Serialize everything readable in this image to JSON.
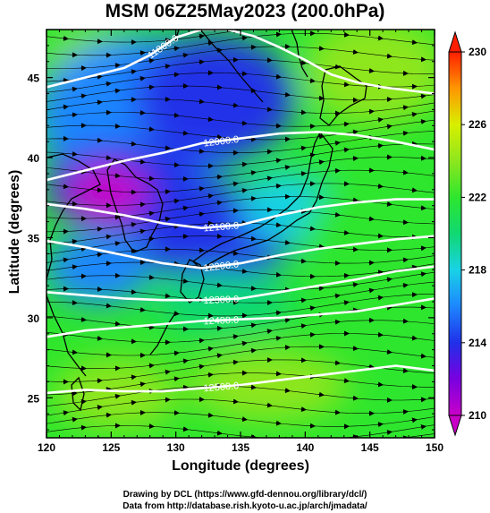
{
  "title": "MSM 06Z25May2023 (200.0hPa)",
  "xlabel": "Longitude (degrees)",
  "ylabel": "Latitude  (degrees)",
  "x_ticks": [
    "120",
    "125",
    "130",
    "135",
    "140",
    "145",
    "150"
  ],
  "y_ticks": [
    "25",
    "30",
    "35",
    "40",
    "45"
  ],
  "colorbar_ticks": [
    "210",
    "214",
    "218",
    "222",
    "226",
    "230"
  ],
  "contour_labels": [
    "11800.0",
    "12000.0",
    "12100.0",
    "12200.0",
    "12300.0",
    "12400.0",
    "12500.0"
  ],
  "credit_line1": "Drawing by DCL (https://www.gfd-dennou.org/library/dcl/)",
  "credit_line2": "Data from http://database.rish.kyoto-u.ac.jp/arch/jmadata/",
  "map_data": {
    "lon_range": [
      120,
      150
    ],
    "lat_range": [
      22.5,
      48
    ],
    "colorbar_range": [
      210,
      230
    ],
    "contours": [
      {
        "label": "11800.0",
        "points": [
          [
            120,
            44.4
          ],
          [
            123,
            45.0
          ],
          [
            126,
            45.6
          ],
          [
            128,
            46.4
          ],
          [
            130,
            47.5
          ],
          [
            132,
            48.0
          ],
          [
            134,
            48.0
          ],
          [
            136,
            47.6
          ],
          [
            138,
            46.9
          ],
          [
            140,
            46.1
          ],
          [
            142,
            45.2
          ],
          [
            144,
            44.7
          ],
          [
            146,
            44.4
          ],
          [
            148,
            44.2
          ],
          [
            150,
            44.0
          ]
        ]
      },
      {
        "label": "12000.0",
        "points": [
          [
            120,
            38.6
          ],
          [
            123,
            39.2
          ],
          [
            126,
            39.8
          ],
          [
            129,
            40.3
          ],
          [
            132,
            40.9
          ],
          [
            135,
            41.2
          ],
          [
            138,
            41.5
          ],
          [
            141,
            41.6
          ],
          [
            144,
            41.4
          ],
          [
            147,
            41.0
          ],
          [
            150,
            40.5
          ]
        ]
      },
      {
        "label": "12100.0",
        "points": [
          [
            120,
            37.1
          ],
          [
            123,
            36.8
          ],
          [
            126,
            36.4
          ],
          [
            129,
            35.9
          ],
          [
            132,
            35.6
          ],
          [
            135,
            35.8
          ],
          [
            138,
            36.4
          ],
          [
            141,
            36.9
          ],
          [
            144,
            37.2
          ],
          [
            147,
            37.4
          ],
          [
            150,
            37.4
          ]
        ]
      },
      {
        "label": "12200.0",
        "points": [
          [
            120,
            34.8
          ],
          [
            123,
            34.4
          ],
          [
            126,
            33.9
          ],
          [
            129,
            33.4
          ],
          [
            132,
            33.1
          ],
          [
            135,
            33.4
          ],
          [
            138,
            33.9
          ],
          [
            141,
            34.3
          ],
          [
            144,
            34.6
          ],
          [
            147,
            34.9
          ],
          [
            150,
            35.1
          ]
        ]
      },
      {
        "label": "12300.0",
        "points": [
          [
            120,
            31.6
          ],
          [
            123,
            31.4
          ],
          [
            126,
            31.2
          ],
          [
            129,
            31.1
          ],
          [
            132,
            31.1
          ],
          [
            135,
            31.2
          ],
          [
            138,
            31.6
          ],
          [
            141,
            32.0
          ],
          [
            144,
            32.4
          ],
          [
            147,
            32.9
          ],
          [
            150,
            33.2
          ]
        ]
      },
      {
        "label": "12400.0",
        "points": [
          [
            120,
            28.8
          ],
          [
            123,
            29.2
          ],
          [
            126,
            29.4
          ],
          [
            129,
            29.6
          ],
          [
            132,
            29.8
          ],
          [
            135,
            29.9
          ],
          [
            138,
            30.0
          ],
          [
            141,
            30.2
          ],
          [
            144,
            30.4
          ],
          [
            147,
            30.8
          ],
          [
            150,
            31.2
          ]
        ]
      },
      {
        "label": "12500.0",
        "points": [
          [
            120,
            25.3
          ],
          [
            123,
            25.5
          ],
          [
            126,
            25.4
          ],
          [
            129,
            25.4
          ],
          [
            132,
            25.6
          ],
          [
            135,
            25.8
          ],
          [
            138,
            26.1
          ],
          [
            141,
            26.4
          ],
          [
            144,
            26.7
          ],
          [
            147,
            27.0
          ],
          [
            150,
            26.7
          ]
        ]
      }
    ]
  },
  "colors": {
    "temp_210": "#c800c8",
    "temp_212": "#7a00e0",
    "temp_214": "#2030e8",
    "temp_216": "#1d86ff",
    "temp_218": "#19d2e6",
    "temp_220": "#10d872",
    "temp_222": "#2ee62e",
    "temp_224": "#8ee61e",
    "temp_226": "#d8f000",
    "temp_228": "#ff9600",
    "temp_230": "#ff1e00"
  }
}
